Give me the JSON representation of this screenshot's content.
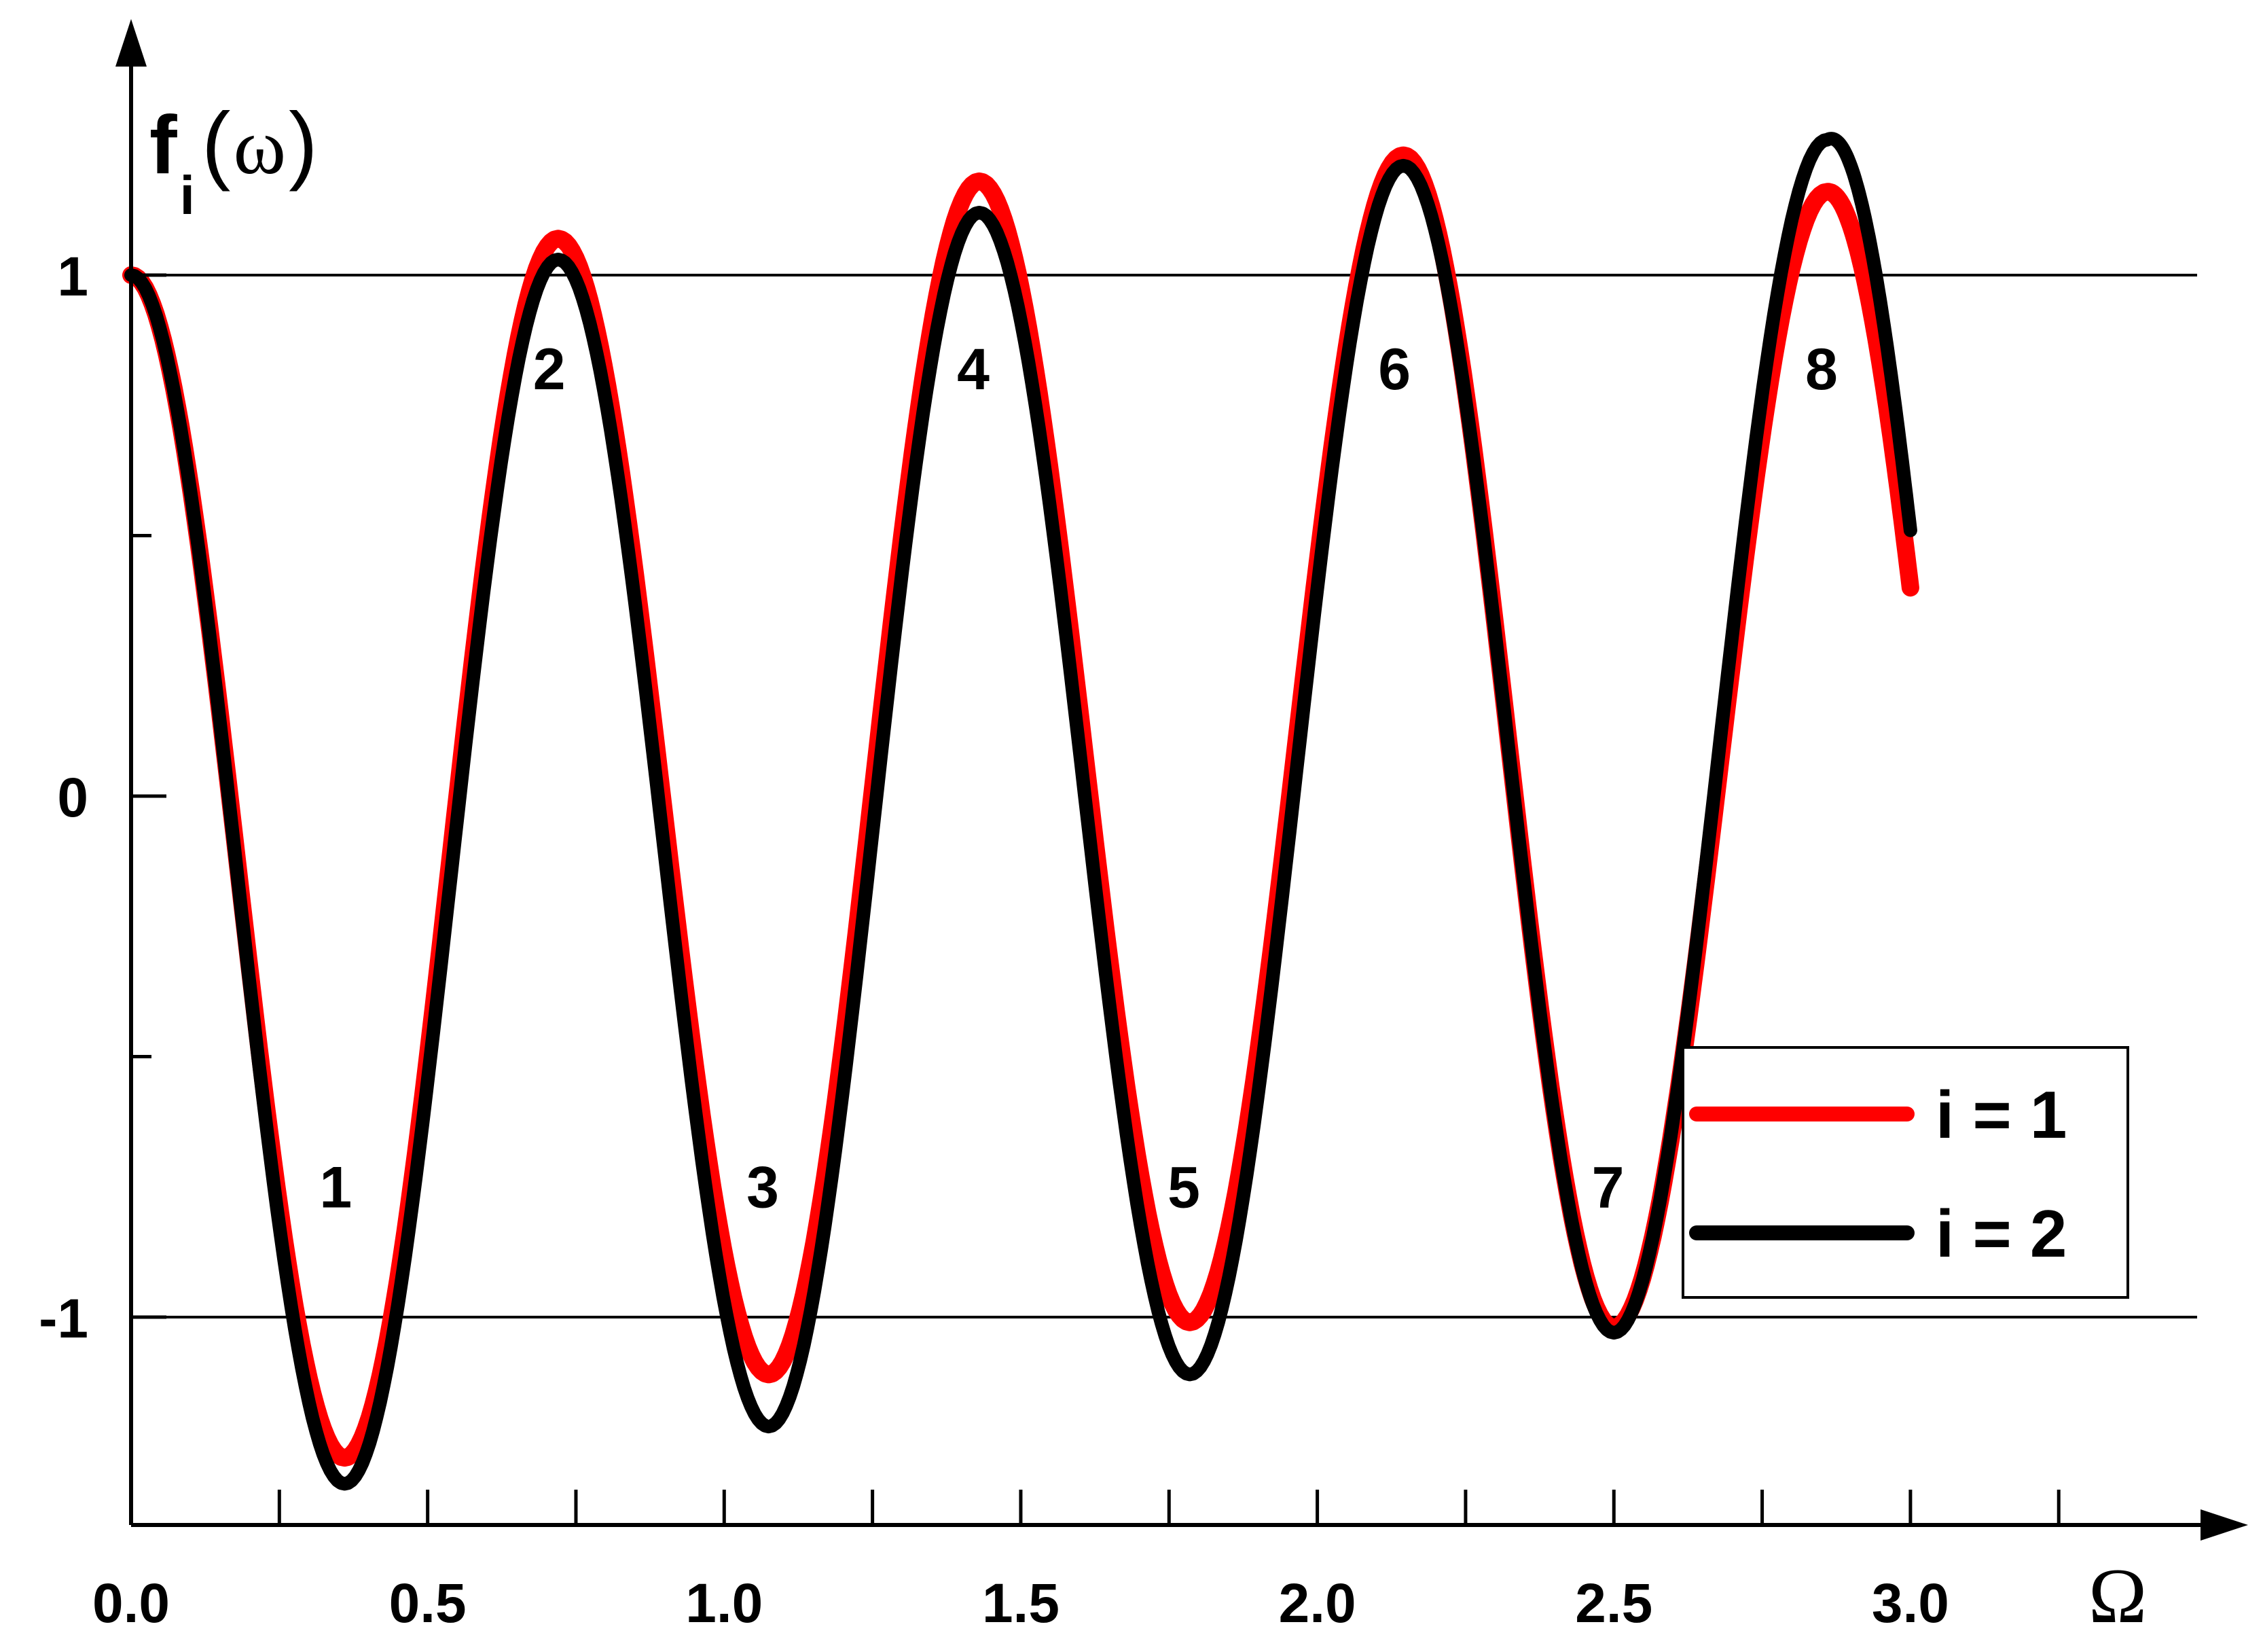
{
  "chart_data": {
    "type": "line",
    "title": "",
    "xlabel": "Ω",
    "ylabel": {
      "main": "f",
      "subscript": "i",
      "open": "(",
      "argument": "ω",
      "close": ")"
    },
    "xlim": [
      0,
      3.55
    ],
    "ylim": [
      -1.4,
      1.45
    ],
    "x_ticks": [
      0.0,
      0.5,
      1.0,
      1.5,
      2.0,
      2.5,
      3.0
    ],
    "x_tick_labels": [
      "0.0",
      "0.5",
      "1.0",
      "1.5",
      "2.0",
      "2.5",
      "3.0"
    ],
    "x_minor_ticks": [
      0.25,
      0.75,
      1.25,
      1.75,
      2.25,
      2.75,
      3.25
    ],
    "y_ticks": [
      -1,
      0,
      1
    ],
    "y_tick_labels": [
      "-1",
      "0",
      "1"
    ],
    "y_minor_ticks": [
      -0.5,
      0.5
    ],
    "reference_lines": [
      1,
      -1
    ],
    "grid": false,
    "legend_position": "bottom-right",
    "series": [
      {
        "name": "i = 1",
        "color": "#ff0000",
        "points": [
          [
            0.0,
            1.0
          ],
          [
            0.36,
            -1.27
          ],
          [
            0.72,
            1.07
          ],
          [
            1.075,
            -1.11
          ],
          [
            1.43,
            1.18
          ],
          [
            1.785,
            -1.01
          ],
          [
            2.145,
            1.23
          ],
          [
            2.5,
            -1.02
          ],
          [
            2.86,
            1.16
          ],
          [
            3.0,
            0.4
          ]
        ]
      },
      {
        "name": "i = 2",
        "color": "#000000",
        "points": [
          [
            0.0,
            1.0
          ],
          [
            0.36,
            -1.32
          ],
          [
            0.72,
            1.03
          ],
          [
            1.075,
            -1.21
          ],
          [
            1.43,
            1.12
          ],
          [
            1.785,
            -1.11
          ],
          [
            2.145,
            1.21
          ],
          [
            2.5,
            -1.03
          ],
          [
            2.86,
            1.26
          ],
          [
            3.0,
            0.51
          ]
        ]
      }
    ],
    "annotations": [
      {
        "text": "1",
        "x": 0.345,
        "y": -0.75
      },
      {
        "text": "2",
        "x": 0.705,
        "y": 0.82
      },
      {
        "text": "3",
        "x": 1.065,
        "y": -0.75
      },
      {
        "text": "4",
        "x": 1.42,
        "y": 0.82
      },
      {
        "text": "5",
        "x": 1.775,
        "y": -0.75
      },
      {
        "text": "6",
        "x": 2.13,
        "y": 0.82
      },
      {
        "text": "7",
        "x": 2.49,
        "y": -0.75
      },
      {
        "text": "8",
        "x": 2.85,
        "y": 0.82
      }
    ]
  }
}
